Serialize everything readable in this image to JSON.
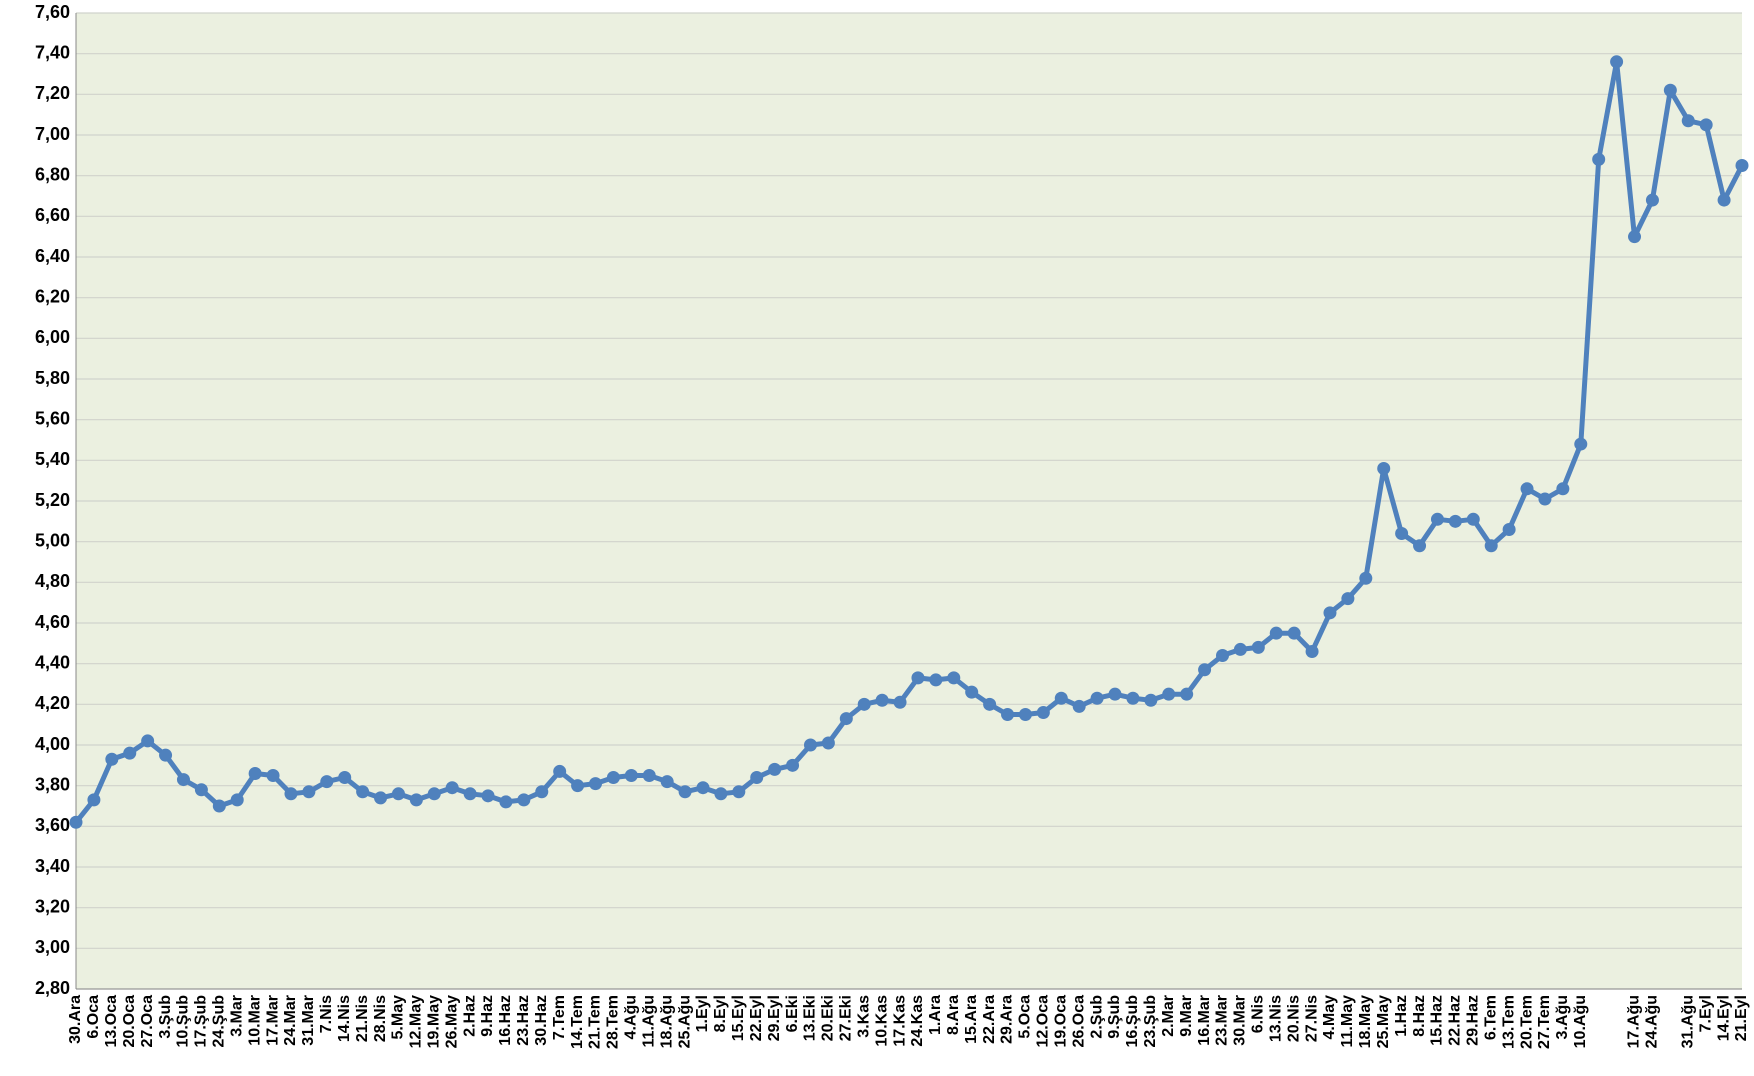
{
  "chart_data": {
    "type": "line",
    "categories": [
      "30.Ara",
      "6.Oca",
      "13.Oca",
      "20.Oca",
      "27.Oca",
      "3.Şub",
      "10.Şub",
      "17.Şub",
      "24.Şub",
      "3.Mar",
      "10.Mar",
      "17.Mar",
      "24.Mar",
      "31.Mar",
      "7.Nis",
      "14.Nis",
      "21.Nis",
      "28.Nis",
      "5.May",
      "12.May",
      "19.May",
      "26.May",
      "2.Haz",
      "9.Haz",
      "16.Haz",
      "23.Haz",
      "30.Haz",
      "7.Tem",
      "14.Tem",
      "21.Tem",
      "28.Tem",
      "4.Ağu",
      "11.Ağu",
      "18.Ağu",
      "25.Ağu",
      "1.Eyl",
      "8.Eyl",
      "15.Eyl",
      "22.Eyl",
      "29.Eyl",
      "6.Eki",
      "13.Eki",
      "20.Eki",
      "27.Eki",
      "3.Kas",
      "10.Kas",
      "17.Kas",
      "24.Kas",
      "1.Ara",
      "8.Ara",
      "15.Ara",
      "22.Ara",
      "29.Ara",
      "5.Oca",
      "12.Oca",
      "19.Oca",
      "26.Oca",
      "2.Şub",
      "9.Şub",
      "16.Şub",
      "23.Şub",
      "2.Mar",
      "9.Mar",
      "16.Mar",
      "23.Mar",
      "30.Mar",
      "6.Nis",
      "13.Nis",
      "20.Nis",
      "27.Nis",
      "4.May",
      "11.May",
      "18.May",
      "25.May",
      "1.Haz",
      "8.Haz",
      "15.Haz",
      "22.Haz",
      "29.Haz",
      "6.Tem",
      "13.Tem",
      "20.Tem",
      "27.Tem",
      "3.Ağu",
      "10.Ağu",
      null,
      null,
      "17.Ağu",
      "24.Ağu",
      null,
      "31.Ağu",
      "7.Eyl",
      "14.Eyl",
      "21.Eyl"
    ],
    "values": [
      3.62,
      3.73,
      3.93,
      3.96,
      4.02,
      3.95,
      3.83,
      3.78,
      3.7,
      3.73,
      3.86,
      3.85,
      3.76,
      3.77,
      3.82,
      3.84,
      3.77,
      3.74,
      3.76,
      3.73,
      3.76,
      3.79,
      3.76,
      3.75,
      3.72,
      3.73,
      3.77,
      3.87,
      3.8,
      3.81,
      3.84,
      3.85,
      3.85,
      3.82,
      3.77,
      3.79,
      3.76,
      3.77,
      3.84,
      3.88,
      3.9,
      4.0,
      4.01,
      4.13,
      4.2,
      4.22,
      4.21,
      4.33,
      4.32,
      4.33,
      4.26,
      4.2,
      4.15,
      4.15,
      4.16,
      4.23,
      4.19,
      4.23,
      4.25,
      4.23,
      4.22,
      4.25,
      4.25,
      4.37,
      4.44,
      4.47,
      4.48,
      4.55,
      4.55,
      4.46,
      4.65,
      4.72,
      4.82,
      5.36,
      5.04,
      4.98,
      5.11,
      5.1,
      5.11,
      4.98,
      5.06,
      5.26,
      5.21,
      5.26,
      5.48,
      6.88,
      7.36,
      6.5,
      6.68,
      7.22,
      7.07,
      7.05,
      6.68,
      6.85
    ],
    "color": "#4f81bd",
    "ylim": [
      2.8,
      7.6
    ],
    "yticks": [
      {
        "value": 2.8,
        "label": "2,80"
      },
      {
        "value": 3.0,
        "label": "3,00"
      },
      {
        "value": 3.2,
        "label": "3,20"
      },
      {
        "value": 3.4,
        "label": "3,40"
      },
      {
        "value": 3.6,
        "label": "3,60"
      },
      {
        "value": 3.8,
        "label": "3,80"
      },
      {
        "value": 4.0,
        "label": "4,00"
      },
      {
        "value": 4.2,
        "label": "4,20"
      },
      {
        "value": 4.4,
        "label": "4,40"
      },
      {
        "value": 4.6,
        "label": "4,60"
      },
      {
        "value": 4.8,
        "label": "4,80"
      },
      {
        "value": 5.0,
        "label": "5,00"
      },
      {
        "value": 5.2,
        "label": "5,20"
      },
      {
        "value": 5.4,
        "label": "5,40"
      },
      {
        "value": 5.6,
        "label": "5,60"
      },
      {
        "value": 5.8,
        "label": "5,80"
      },
      {
        "value": 6.0,
        "label": "6,00"
      },
      {
        "value": 6.2,
        "label": "6,20"
      },
      {
        "value": 6.4,
        "label": "6,40"
      },
      {
        "value": 6.6,
        "label": "6,60"
      },
      {
        "value": 6.8,
        "label": "6,80"
      },
      {
        "value": 7.0,
        "label": "7,00"
      },
      {
        "value": 7.2,
        "label": "7,20"
      },
      {
        "value": 7.4,
        "label": "7,40"
      },
      {
        "value": 7.6,
        "label": "7,60"
      }
    ],
    "grid": true
  }
}
